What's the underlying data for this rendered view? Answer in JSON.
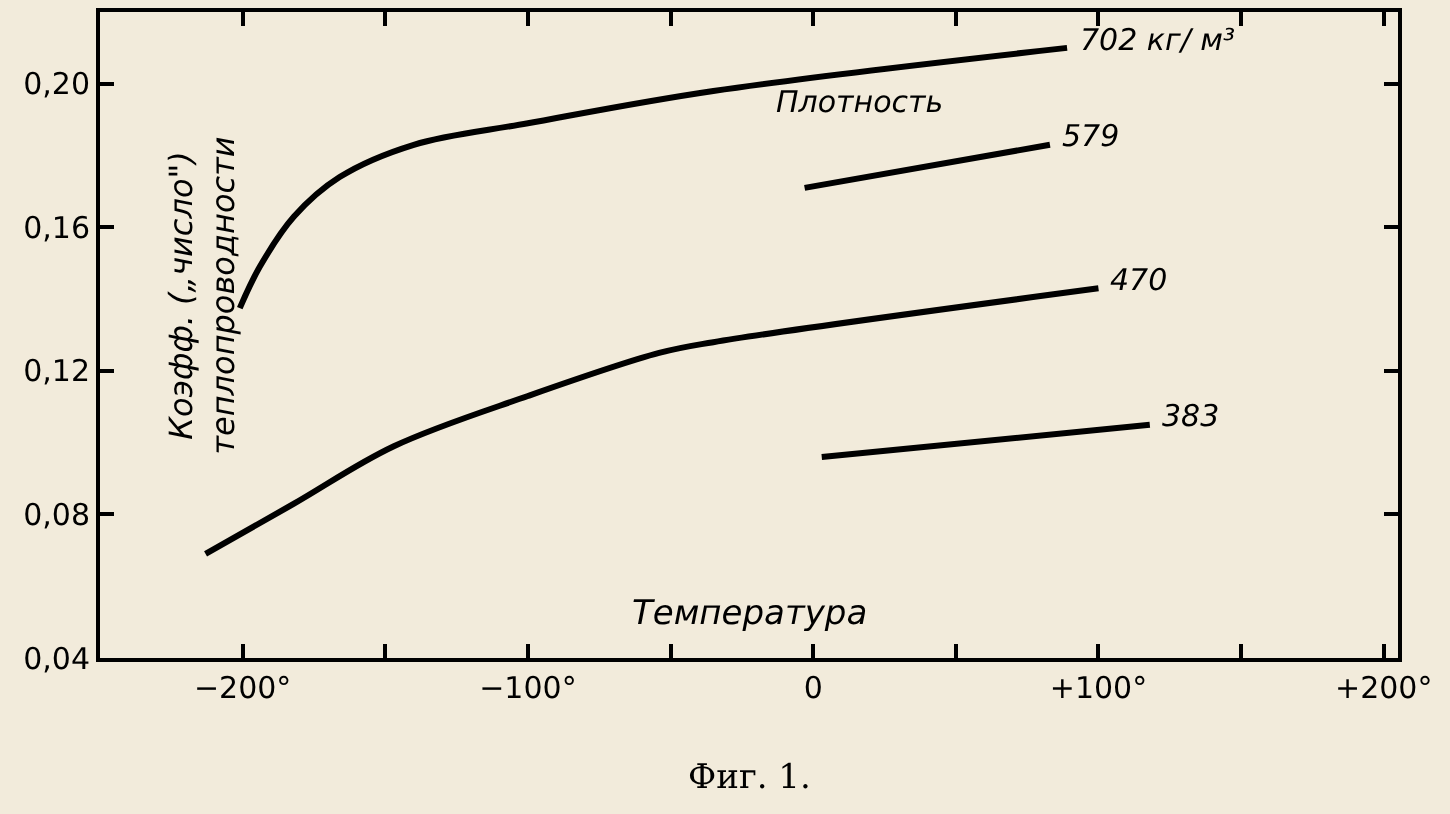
{
  "chart_data": {
    "type": "line",
    "xlabel": "Температура",
    "ylabel": "Коэфф. („число\") теплопроводности",
    "xlim": [
      -250,
      205
    ],
    "xticks": [
      {
        "value": -200,
        "label": "−200°"
      },
      {
        "value": -150,
        "label": null
      },
      {
        "value": -100,
        "label": "−100°"
      },
      {
        "value": -50,
        "label": null
      },
      0,
      {
        "value": 50,
        "label": null
      },
      {
        "value": 100,
        "label": "+100°"
      },
      {
        "value": 150,
        "label": null
      },
      {
        "value": 200,
        "label": "+200°"
      }
    ],
    "ylim": [
      0.04,
      0.22
    ],
    "yticks": [
      {
        "value": 0.04,
        "label": "0,04"
      },
      {
        "value": 0.08,
        "label": "0,08"
      },
      {
        "value": 0.12,
        "label": "0,12"
      },
      {
        "value": 0.16,
        "label": "0,16"
      },
      {
        "value": 0.2,
        "label": "0,20"
      }
    ],
    "series": [
      {
        "name": "702 кг/ м³",
        "color": "#000000",
        "x": [
          -201,
          -194,
          -182,
          -166,
          -140,
          -100,
          -35,
          89
        ],
        "values": [
          0.1375,
          0.149,
          0.163,
          0.174,
          0.183,
          0.189,
          0.198,
          0.21
        ]
      },
      {
        "name": "579",
        "color": "#000000",
        "x": [
          -3,
          83
        ],
        "values": [
          0.171,
          0.183
        ]
      },
      {
        "name": "470",
        "color": "#000000",
        "x": [
          -213,
          -182,
          -147,
          -100,
          -54,
          -35,
          100
        ],
        "values": [
          0.069,
          0.083,
          0.099,
          0.113,
          0.125,
          0.128,
          0.143
        ]
      },
      {
        "name": "383",
        "color": "#000000",
        "x": [
          3,
          118
        ],
        "values": [
          0.096,
          0.105
        ]
      }
    ],
    "annotations": [
      "Плотность",
      "Фиг. 1."
    ],
    "marker": "none",
    "grid": false
  }
}
